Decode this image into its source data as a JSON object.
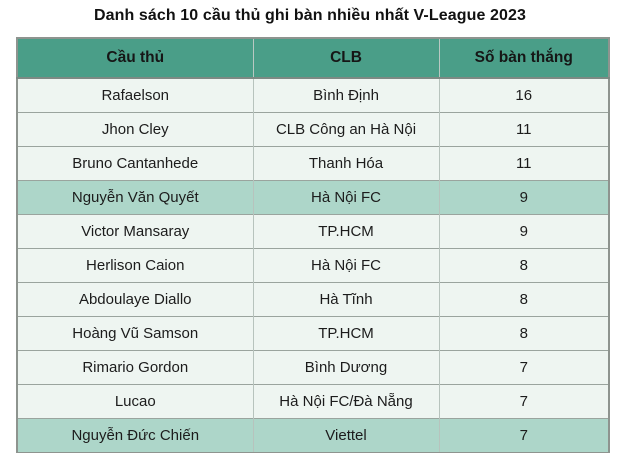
{
  "page": {
    "title": "Danh sách 10 cầu thủ ghi bàn nhiều nhất V-League 2023"
  },
  "table": {
    "headers": [
      "Cầu thủ",
      "CLB",
      "Số bàn thắng"
    ],
    "rows": [
      {
        "player": "Rafaelson",
        "club": "Bình Định",
        "goals": "16",
        "highlighted": false
      },
      {
        "player": "Jhon Cley",
        "club": "CLB Công an Hà Nội",
        "goals": "11",
        "highlighted": false
      },
      {
        "player": "Bruno Cantanhede",
        "club": "Thanh Hóa",
        "goals": "11",
        "highlighted": false
      },
      {
        "player": "Nguyễn Văn Quyết",
        "club": "Hà Nội FC",
        "goals": "9",
        "highlighted": true
      },
      {
        "player": "Victor Mansaray",
        "club": "TP.HCM",
        "goals": "9",
        "highlighted": false
      },
      {
        "player": "Herlison Caion",
        "club": "Hà Nội FC",
        "goals": "8",
        "highlighted": false
      },
      {
        "player": "Abdoulaye Diallo",
        "club": "Hà Tĩnh",
        "goals": "8",
        "highlighted": false
      },
      {
        "player": "Hoàng Vũ Samson",
        "club": "TP.HCM",
        "goals": "8",
        "highlighted": false
      },
      {
        "player": "Rimario Gordon",
        "club": "Bình Dương",
        "goals": "7",
        "highlighted": false
      },
      {
        "player": "Lucao",
        "club": "Hà Nội FC/Đà Nẵng",
        "goals": "7",
        "highlighted": false
      },
      {
        "player": "Nguyễn Đức Chiến",
        "club": "Viettel",
        "goals": "7",
        "highlighted": true
      }
    ]
  },
  "colors": {
    "header_bg": "#4a9e88",
    "row_bg": "#eef5f1",
    "highlight_row_bg": "#add6c9",
    "outer_border": "#8e948f",
    "text": "#1c1c1c"
  },
  "chart_data": {
    "type": "table",
    "title": "Danh sách 10 cầu thủ ghi bàn nhiều nhất V-League 2023",
    "columns": [
      "Cầu thủ",
      "CLB",
      "Số bàn thắng"
    ],
    "rows": [
      [
        "Rafaelson",
        "Bình Định",
        16
      ],
      [
        "Jhon Cley",
        "CLB Công an Hà Nội",
        11
      ],
      [
        "Bruno Cantanhede",
        "Thanh Hóa",
        11
      ],
      [
        "Nguyễn Văn Quyết",
        "Hà Nội FC",
        9
      ],
      [
        "Victor Mansaray",
        "TP.HCM",
        9
      ],
      [
        "Herlison Caion",
        "Hà Nội FC",
        8
      ],
      [
        "Abdoulaye Diallo",
        "Hà Tĩnh",
        8
      ],
      [
        "Hoàng Vũ Samson",
        "TP.HCM",
        8
      ],
      [
        "Rimario Gordon",
        "Bình Dương",
        7
      ],
      [
        "Lucao",
        "Hà Nội FC/Đà Nẵng",
        7
      ],
      [
        "Nguyễn Đức Chiến",
        "Viettel",
        7
      ]
    ],
    "highlighted_row_indices": [
      3,
      10
    ]
  }
}
